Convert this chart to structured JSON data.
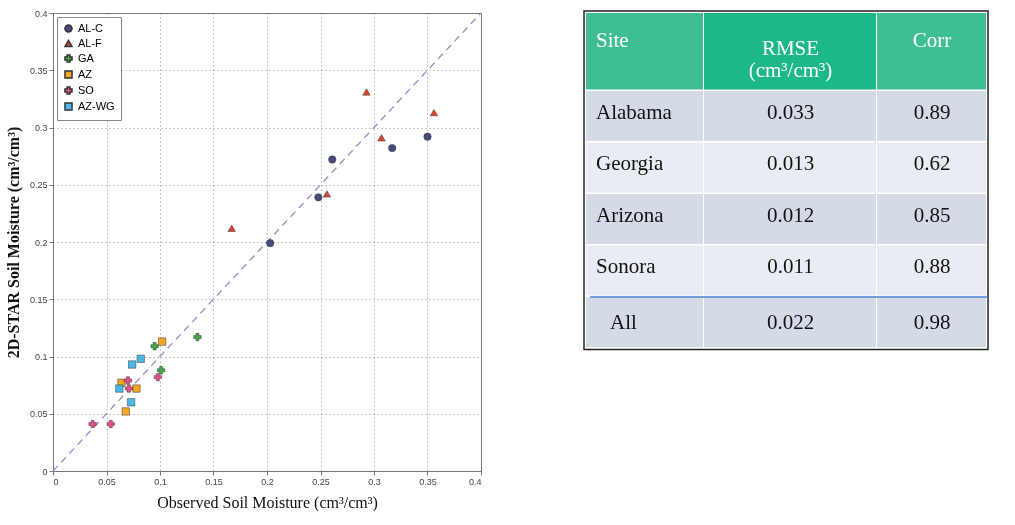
{
  "chart_data": [
    {
      "type": "scatter",
      "xlabel": "Observed Soil Moisture  (cm³/cm³)",
      "ylabel": "2D-STAR Soil Moisture  (cm³/cm³)",
      "xlim": [
        0,
        0.4
      ],
      "ylim": [
        0,
        0.4
      ],
      "xticks": [
        0,
        0.05,
        0.1,
        0.15,
        0.2,
        0.25,
        0.3,
        0.35,
        0.4
      ],
      "yticks": [
        0,
        0.05,
        0.1,
        0.15,
        0.2,
        0.25,
        0.3,
        0.35,
        0.4
      ],
      "grid": true,
      "legend": "top left",
      "series": [
        {
          "type": "line",
          "color": "#8f8fc4",
          "line_style": "dashed",
          "x": [
            0,
            0.4
          ],
          "values": [
            0,
            0.4
          ]
        },
        {
          "name": "AL-C",
          "color": "#4a4a7e",
          "marker": "circle",
          "x": [
            0.203,
            0.248,
            0.261,
            0.317,
            0.35
          ],
          "values": [
            0.199,
            0.239,
            0.272,
            0.282,
            0.292
          ]
        },
        {
          "name": "AL-F",
          "color": "#d9462a",
          "marker": "triangle",
          "x": [
            0.167,
            0.256,
            0.293,
            0.307,
            0.356
          ],
          "values": [
            0.212,
            0.242,
            0.331,
            0.291,
            0.313
          ]
        },
        {
          "name": "GA",
          "color": "#4aa84a",
          "marker": "cross",
          "x": [
            0.095,
            0.135,
            0.101
          ],
          "values": [
            0.109,
            0.117,
            0.088
          ]
        },
        {
          "name": "AZ",
          "color": "#f5a623",
          "marker": "square",
          "x": [
            0.102,
            0.064,
            0.078,
            0.068
          ],
          "values": [
            0.113,
            0.077,
            0.072,
            0.052
          ]
        },
        {
          "name": "SO",
          "color": "#e8508f",
          "marker": "cross",
          "x": [
            0.037,
            0.054,
            0.07,
            0.071,
            0.098
          ],
          "values": [
            0.041,
            0.041,
            0.079,
            0.072,
            0.082
          ]
        },
        {
          "name": "AZ-WG",
          "color": "#4db8e8",
          "marker": "square",
          "x": [
            0.074,
            0.082,
            0.062,
            0.073
          ],
          "values": [
            0.093,
            0.098,
            0.072,
            0.06
          ]
        }
      ]
    },
    {
      "type": "other",
      "annotations": [
        "Site",
        "RMSE (cm³/cm³)",
        "Corr",
        "Alabama",
        "0.033",
        "0.89",
        "Georgia",
        "0.013",
        "0.62",
        "Arizona",
        "0.012",
        "0.85",
        "Sonora",
        "0.011",
        "0.88",
        "All",
        "0.022",
        "0.98"
      ]
    }
  ]
}
